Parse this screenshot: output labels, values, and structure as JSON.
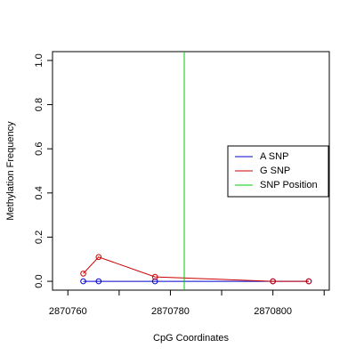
{
  "chart_data": {
    "type": "line",
    "xlabel": "CpG Coordinates",
    "ylabel": "Methylation Frequency",
    "xlim": [
      2870757,
      2870811
    ],
    "ylim": [
      -0.04,
      1.04
    ],
    "x_ticks": [
      2870760,
      2870780,
      2870800
    ],
    "x_tick_labels": [
      "2870760",
      "2870780",
      "2870800"
    ],
    "y_ticks": [
      0.0,
      0.2,
      0.4,
      0.6,
      0.8,
      1.0
    ],
    "y_tick_labels": [
      "0.0",
      "0.2",
      "0.4",
      "0.6",
      "0.8",
      "1.0"
    ],
    "grid": false,
    "legend_position": "right",
    "series": [
      {
        "name": "A SNP",
        "color": "#0000cc",
        "x": [
          2870763,
          2870766,
          2870777,
          2870800,
          2870807
        ],
        "y": [
          0.0,
          0.0,
          0.0,
          0.0,
          0.0
        ]
      },
      {
        "name": "G SNP",
        "color": "#cc0000",
        "x": [
          2870763,
          2870766,
          2870777,
          2870800,
          2870807
        ],
        "y": [
          0.035,
          0.11,
          0.02,
          0.0,
          0.0
        ]
      }
    ],
    "snp_position": {
      "name": "SNP Position",
      "color": "#00cc00",
      "x": 2870782.7
    }
  }
}
